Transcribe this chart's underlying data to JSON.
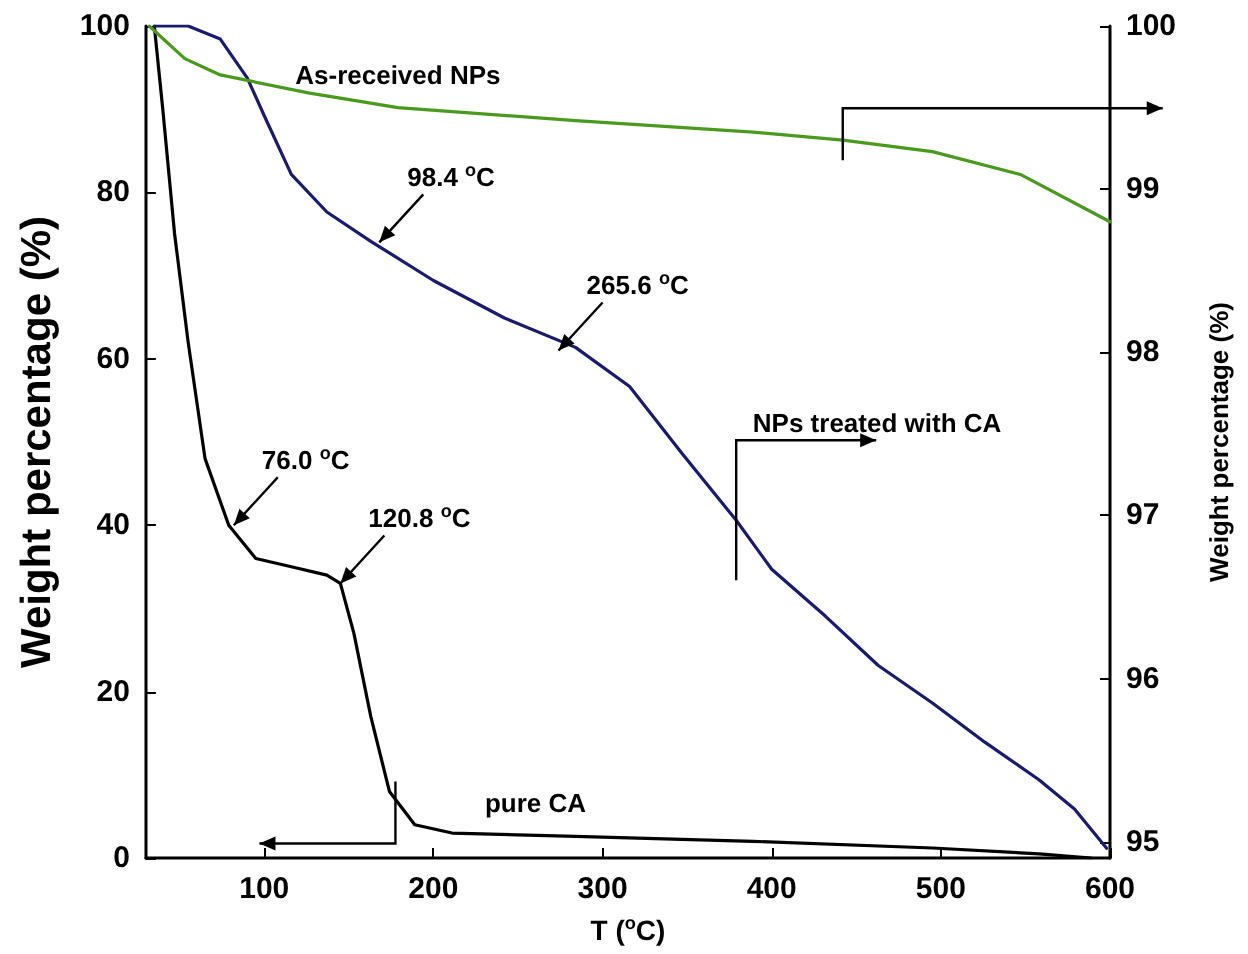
{
  "chart_data": {
    "type": "line",
    "xlabel": "T ($^{o}$C)",
    "ylabel": "Weight percentage (%)",
    "y2label": "Weight percentage (%)",
    "xlim": [
      30,
      600
    ],
    "xticks": [
      100,
      200,
      300,
      400,
      500,
      600
    ],
    "ylim": [
      0,
      100
    ],
    "yticks": [
      0,
      20,
      40,
      60,
      80,
      100
    ],
    "y2lim": [
      94.9,
      100
    ],
    "y2ticks": [
      95,
      96,
      97,
      98,
      99,
      100
    ],
    "series": [
      {
        "name": "pure CA",
        "color": "#000000",
        "x": [
          35,
          40,
          47,
          55,
          65,
          79,
          95,
          116,
          137,
          145,
          153,
          163,
          174,
          189,
          211,
          284,
          389,
          495,
          558,
          589
        ],
        "values": [
          100,
          90,
          75,
          62,
          48,
          40,
          36,
          35,
          34,
          33,
          27,
          17,
          8,
          4,
          3,
          2.6,
          2,
          1.2,
          0.5,
          0
        ]
      },
      {
        "name": "NPs treated with CA",
        "color": "#1a1a6e",
        "axis": "y2",
        "x": [
          35,
          55,
          74,
          90,
          100,
          116,
          137,
          163,
          200,
          242,
          284,
          316,
          347,
          379,
          400,
          432,
          463,
          495,
          526,
          558,
          579,
          598
        ],
        "values": [
          100,
          100,
          99.92,
          99.68,
          99.45,
          99.09,
          98.86,
          98.68,
          98.44,
          98.21,
          98.03,
          97.79,
          97.38,
          96.97,
          96.67,
          96.38,
          96.08,
          95.85,
          95.61,
          95.38,
          95.2,
          94.96
        ]
      },
      {
        "name": "As-received NPs",
        "color": "#4a9a1e",
        "axis": "y2",
        "x": [
          32,
          53,
          74,
          126,
          179,
          284,
          389,
          442,
          495,
          547,
          600
        ],
        "values": [
          100,
          99.8,
          99.7,
          99.59,
          99.5,
          99.42,
          99.35,
          99.3,
          99.23,
          99.09,
          98.8
        ]
      }
    ],
    "annotations": [
      {
        "text": "98.4 $^{o}$C",
        "x": 168,
        "y": 74
      },
      {
        "text": "265.6 $^{o}$C",
        "x": 274,
        "y": 61
      },
      {
        "text": "76.0 $^{o}$C",
        "x": 82,
        "y": 40
      },
      {
        "text": "120.8 $^{o}$C",
        "x": 145,
        "y": 33
      }
    ],
    "legend": false,
    "grid": false,
    "marker": "none"
  }
}
